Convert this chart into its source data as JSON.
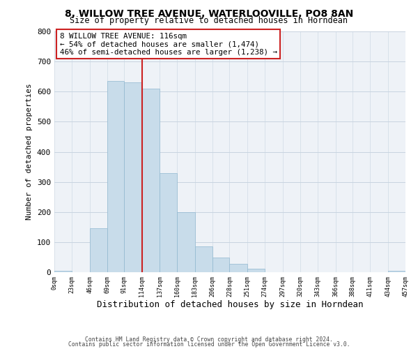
{
  "title": "8, WILLOW TREE AVENUE, WATERLOOVILLE, PO8 8AN",
  "subtitle": "Size of property relative to detached houses in Horndean",
  "xlabel": "Distribution of detached houses by size in Horndean",
  "ylabel": "Number of detached properties",
  "bar_left_edges": [
    0,
    23,
    46,
    69,
    91,
    114,
    137,
    160,
    183,
    206,
    228,
    251,
    274,
    297,
    320,
    343,
    366,
    388,
    411,
    434
  ],
  "bar_heights": [
    5,
    0,
    145,
    635,
    630,
    610,
    330,
    200,
    85,
    48,
    28,
    12,
    0,
    0,
    0,
    0,
    0,
    0,
    0,
    5
  ],
  "bar_widths": [
    23,
    23,
    23,
    22,
    23,
    23,
    23,
    23,
    23,
    22,
    23,
    23,
    23,
    23,
    23,
    23,
    22,
    23,
    23,
    23
  ],
  "bar_color": "#c8dcea",
  "bar_edge_color": "#90b8d0",
  "vline_x": 114,
  "vline_color": "#cc2222",
  "annotation_title": "8 WILLOW TREE AVENUE: 116sqm",
  "annotation_line1": "← 54% of detached houses are smaller (1,474)",
  "annotation_line2": "46% of semi-detached houses are larger (1,238) →",
  "annotation_box_color": "#ffffff",
  "annotation_box_edge_color": "#cc2222",
  "xlim": [
    0,
    457
  ],
  "ylim": [
    0,
    800
  ],
  "xtick_labels": [
    "0sqm",
    "23sqm",
    "46sqm",
    "69sqm",
    "91sqm",
    "114sqm",
    "137sqm",
    "160sqm",
    "183sqm",
    "206sqm",
    "228sqm",
    "251sqm",
    "274sqm",
    "297sqm",
    "320sqm",
    "343sqm",
    "366sqm",
    "388sqm",
    "411sqm",
    "434sqm",
    "457sqm"
  ],
  "xtick_positions": [
    0,
    23,
    46,
    69,
    91,
    114,
    137,
    160,
    183,
    206,
    228,
    251,
    274,
    297,
    320,
    343,
    366,
    388,
    411,
    434,
    457
  ],
  "ytick_positions": [
    0,
    100,
    200,
    300,
    400,
    500,
    600,
    700,
    800
  ],
  "ytick_labels": [
    "0",
    "100",
    "200",
    "300",
    "400",
    "500",
    "600",
    "700",
    "800"
  ],
  "footnote1": "Contains HM Land Registry data © Crown copyright and database right 2024.",
  "footnote2": "Contains public sector information licensed under the Open Government Licence v3.0.",
  "background_color": "#ffffff",
  "plot_bg_color": "#eef2f7",
  "grid_color": "#c8d4e0"
}
